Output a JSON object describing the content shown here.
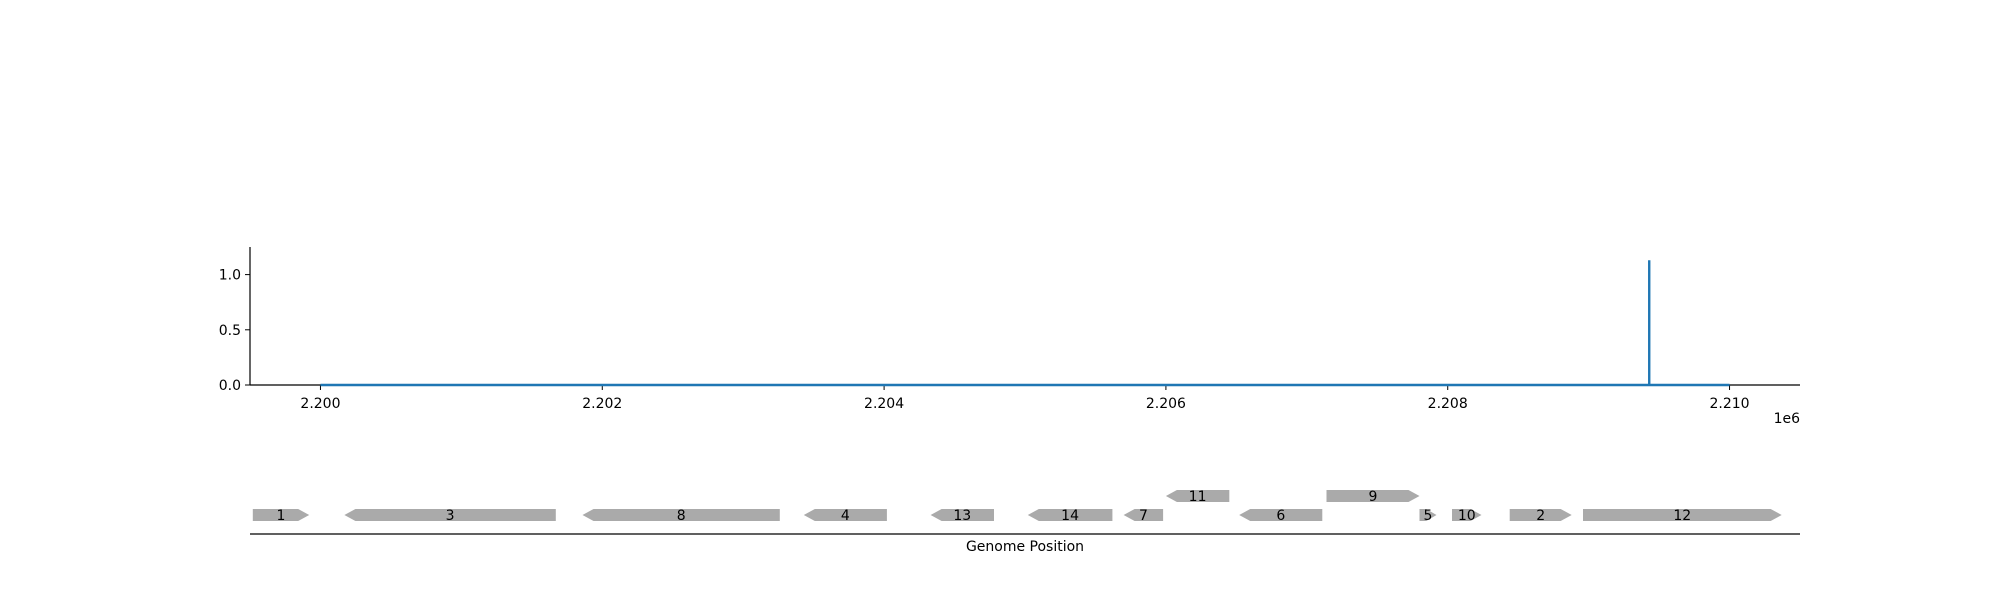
{
  "colors": {
    "signal": "#1f77b4",
    "gene": "#aaaaaa",
    "axis": "#000000"
  },
  "chart_data": {
    "type": "line",
    "title": "",
    "xlabel": "",
    "ylabel": "",
    "xlim": [
      2199500,
      2210500
    ],
    "ylim": [
      0,
      1.25
    ],
    "x_offset_label": "1e6",
    "x_ticks": [
      2200000,
      2202000,
      2204000,
      2206000,
      2208000,
      2210000
    ],
    "x_tick_labels": [
      "2.200",
      "2.202",
      "2.204",
      "2.206",
      "2.208",
      "2.210"
    ],
    "y_ticks": [
      0,
      0.5,
      1.0
    ],
    "y_tick_labels": [
      "0.0",
      "0.5",
      "1.0"
    ],
    "series": [
      {
        "x": [
          2200000,
          2209430,
          2209430,
          2209430,
          2209430,
          2210000
        ],
        "y": [
          0,
          0,
          1.13,
          1.13,
          0,
          0
        ]
      }
    ]
  },
  "gene_track": {
    "xlabel": "Genome Position",
    "genes": [
      {
        "label": "1",
        "start": 2199520,
        "end": 2199920,
        "strand": "+",
        "row": 0
      },
      {
        "label": "3",
        "start": 2200170,
        "end": 2201670,
        "strand": "-",
        "row": 0
      },
      {
        "label": "8",
        "start": 2201860,
        "end": 2203260,
        "strand": "-",
        "row": 0
      },
      {
        "label": "4",
        "start": 2203430,
        "end": 2204020,
        "strand": "-",
        "row": 0
      },
      {
        "label": "13",
        "start": 2204330,
        "end": 2204780,
        "strand": "-",
        "row": 0
      },
      {
        "label": "14",
        "start": 2205020,
        "end": 2205620,
        "strand": "-",
        "row": 0
      },
      {
        "label": "7",
        "start": 2205700,
        "end": 2205980,
        "strand": "-",
        "row": 0
      },
      {
        "label": "11",
        "start": 2206000,
        "end": 2206450,
        "strand": "-",
        "row": 1
      },
      {
        "label": "6",
        "start": 2206520,
        "end": 2207110,
        "strand": "-",
        "row": 0
      },
      {
        "label": "9",
        "start": 2207140,
        "end": 2207800,
        "strand": "+",
        "row": 1
      },
      {
        "label": "5",
        "start": 2207800,
        "end": 2207920,
        "strand": "+",
        "row": 0
      },
      {
        "label": "10",
        "start": 2208030,
        "end": 2208240,
        "strand": "+",
        "row": 0
      },
      {
        "label": "2",
        "start": 2208440,
        "end": 2208880,
        "strand": "+",
        "row": 0
      },
      {
        "label": "12",
        "start": 2208960,
        "end": 2210370,
        "strand": "+",
        "row": 0
      }
    ]
  }
}
